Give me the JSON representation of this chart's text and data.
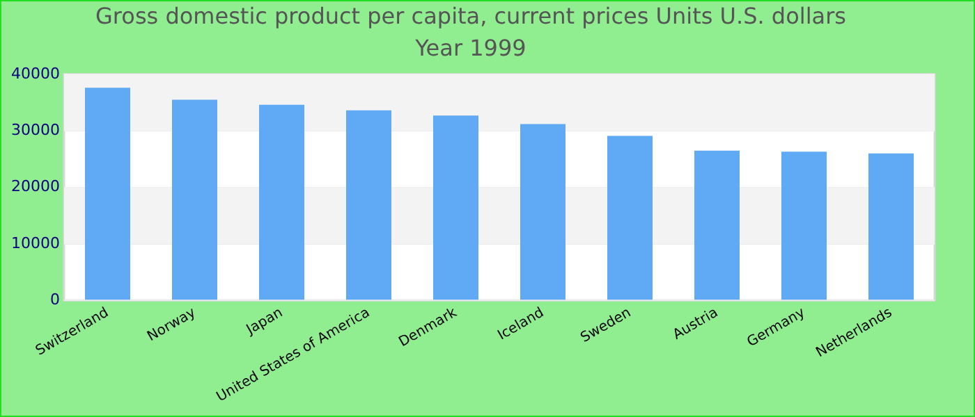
{
  "chart_data": {
    "type": "bar",
    "title": "Gross domestic product per capita, current prices Units U.S. dollars",
    "subtitle": "Year 1999",
    "categories": [
      "Switzerland",
      "Norway",
      "Japan",
      "United States of America",
      "Denmark",
      "Iceland",
      "Sweden",
      "Austria",
      "Germany",
      "Netherlands"
    ],
    "values": [
      37600,
      35500,
      34600,
      33600,
      32700,
      31200,
      29100,
      26500,
      26300,
      26000
    ],
    "color": "#60a9f4",
    "ylim": [
      0,
      40000
    ],
    "yticks": [
      0,
      10000,
      20000,
      30000,
      40000
    ],
    "grid": "y",
    "legend": false
  }
}
